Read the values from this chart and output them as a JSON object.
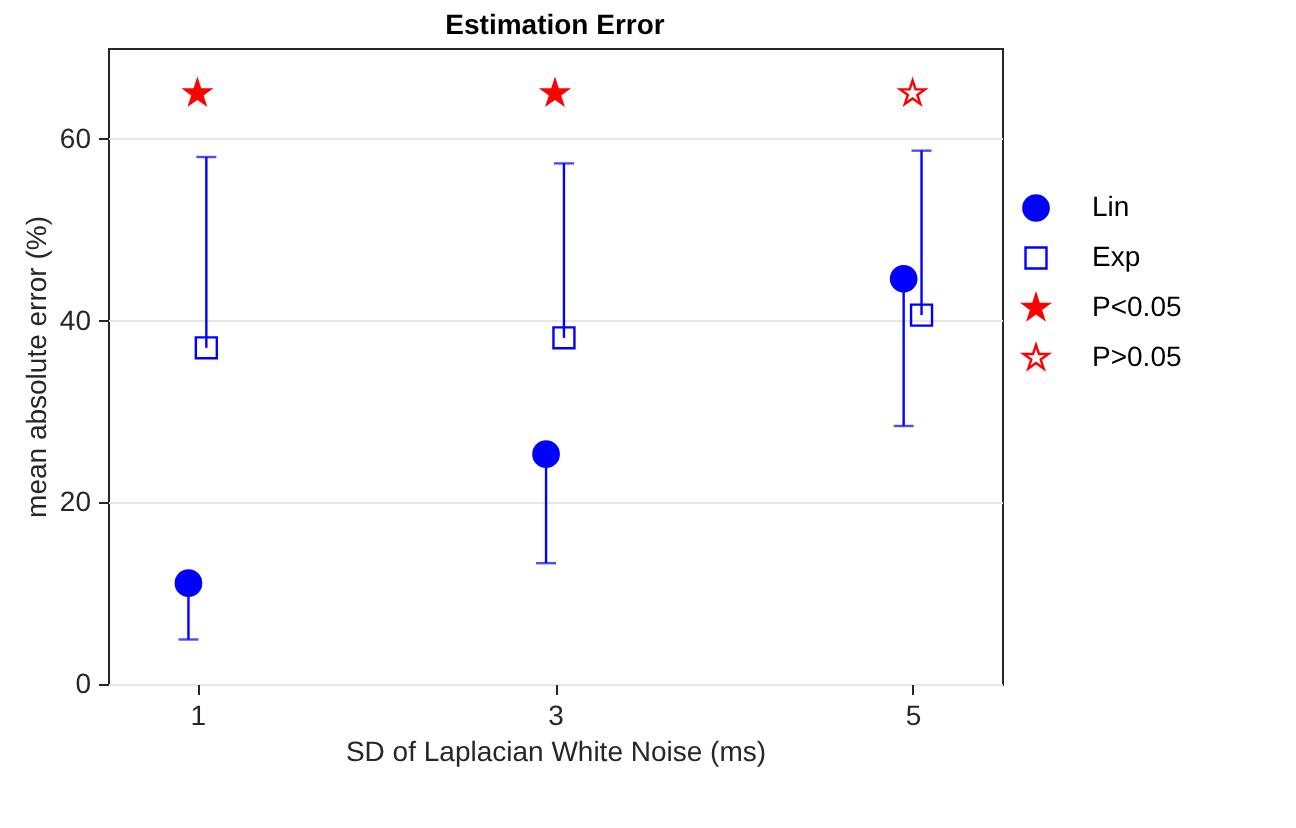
{
  "chart_data": {
    "type": "scatter",
    "title": "Estimation Error",
    "xlabel": "SD of Laplacian White Noise (ms)",
    "ylabel": "mean absolute error (%)",
    "xlim": [
      0.5,
      5.5
    ],
    "xticks": [
      1,
      3,
      5
    ],
    "ylim": [
      0,
      70
    ],
    "yticks": [
      0,
      20,
      40,
      60
    ],
    "grid": "y",
    "legend": "right",
    "series": [
      {
        "name": "Lin",
        "color": "#0000ff",
        "marker": "circle",
        "x": [
          0.95,
          2.95,
          4.95
        ],
        "values": [
          11.1,
          25.3,
          44.6
        ],
        "errors": [
          [
            4.9,
            11.1
          ],
          [
            13.3,
            25.3
          ],
          [
            28.4,
            44.6
          ]
        ]
      },
      {
        "name": "Exp",
        "color": "#0000ff",
        "marker": "square",
        "x": [
          1.05,
          3.05,
          5.05
        ],
        "values": [
          37.0,
          38.1,
          40.6
        ],
        "errors": [
          [
            37.0,
            58.0
          ],
          [
            38.1,
            57.3
          ],
          [
            40.6,
            58.7
          ]
        ]
      },
      {
        "name": "P<0.05",
        "color": "#ff0000",
        "marker": "star",
        "x": [
          1,
          3
        ],
        "values": [
          65,
          65
        ]
      },
      {
        "name": "P>0.05",
        "color": "#ff0000",
        "marker": "star",
        "x": [
          5
        ],
        "values": [
          65
        ]
      }
    ]
  }
}
